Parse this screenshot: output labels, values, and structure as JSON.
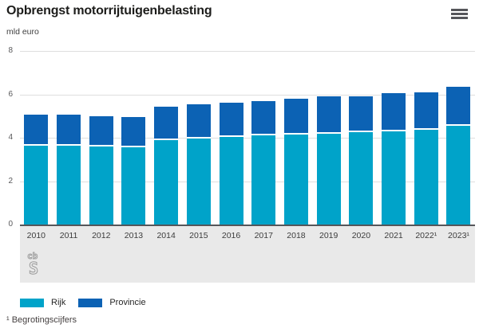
{
  "header": {
    "title": "Opbrengst motorrijtuigenbelasting",
    "unit_label": "mld euro"
  },
  "chart_data": {
    "type": "bar",
    "stacked": true,
    "title": "Opbrengst motorrijtuigenbelasting",
    "ylabel": "mld euro",
    "xlabel": "",
    "ylim": [
      0,
      8
    ],
    "yticks": [
      0,
      2,
      4,
      6,
      8
    ],
    "grid": true,
    "legend_position": "bottom",
    "categories": [
      "2010",
      "2011",
      "2012",
      "2013",
      "2014",
      "2015",
      "2016",
      "2017",
      "2018",
      "2019",
      "2020",
      "2021",
      "2022¹",
      "2023¹"
    ],
    "series": [
      {
        "name": "Rijk",
        "color": "#00a3c9",
        "values": [
          3.65,
          3.65,
          3.6,
          3.55,
          3.9,
          3.95,
          4.05,
          4.1,
          4.15,
          4.2,
          4.25,
          4.3,
          4.35,
          4.55
        ]
      },
      {
        "name": "Provincie",
        "color": "#0c62b4",
        "values": [
          1.4,
          1.4,
          1.4,
          1.4,
          1.55,
          1.6,
          1.55,
          1.6,
          1.65,
          1.7,
          1.65,
          1.75,
          1.75,
          1.8
        ]
      }
    ],
    "totals": [
      5.05,
      5.05,
      5.0,
      4.95,
      5.45,
      5.55,
      5.6,
      5.7,
      5.8,
      5.9,
      5.9,
      6.05,
      6.1,
      6.35
    ]
  },
  "legend": {
    "items": [
      {
        "label": "Rijk",
        "color": "#00a3c9"
      },
      {
        "label": "Provincie",
        "color": "#0c62b4"
      }
    ]
  },
  "footnote": "¹ Begrotingscijfers",
  "branding": {
    "logo": "cbs-logo"
  },
  "colors": {
    "rijk": "#00a3c9",
    "provincie": "#0c62b4",
    "axis_line": "#55565a",
    "gridline": "#dedede",
    "xstrip_bg": "#e9e9e9",
    "title_text": "#1d1d1b"
  }
}
